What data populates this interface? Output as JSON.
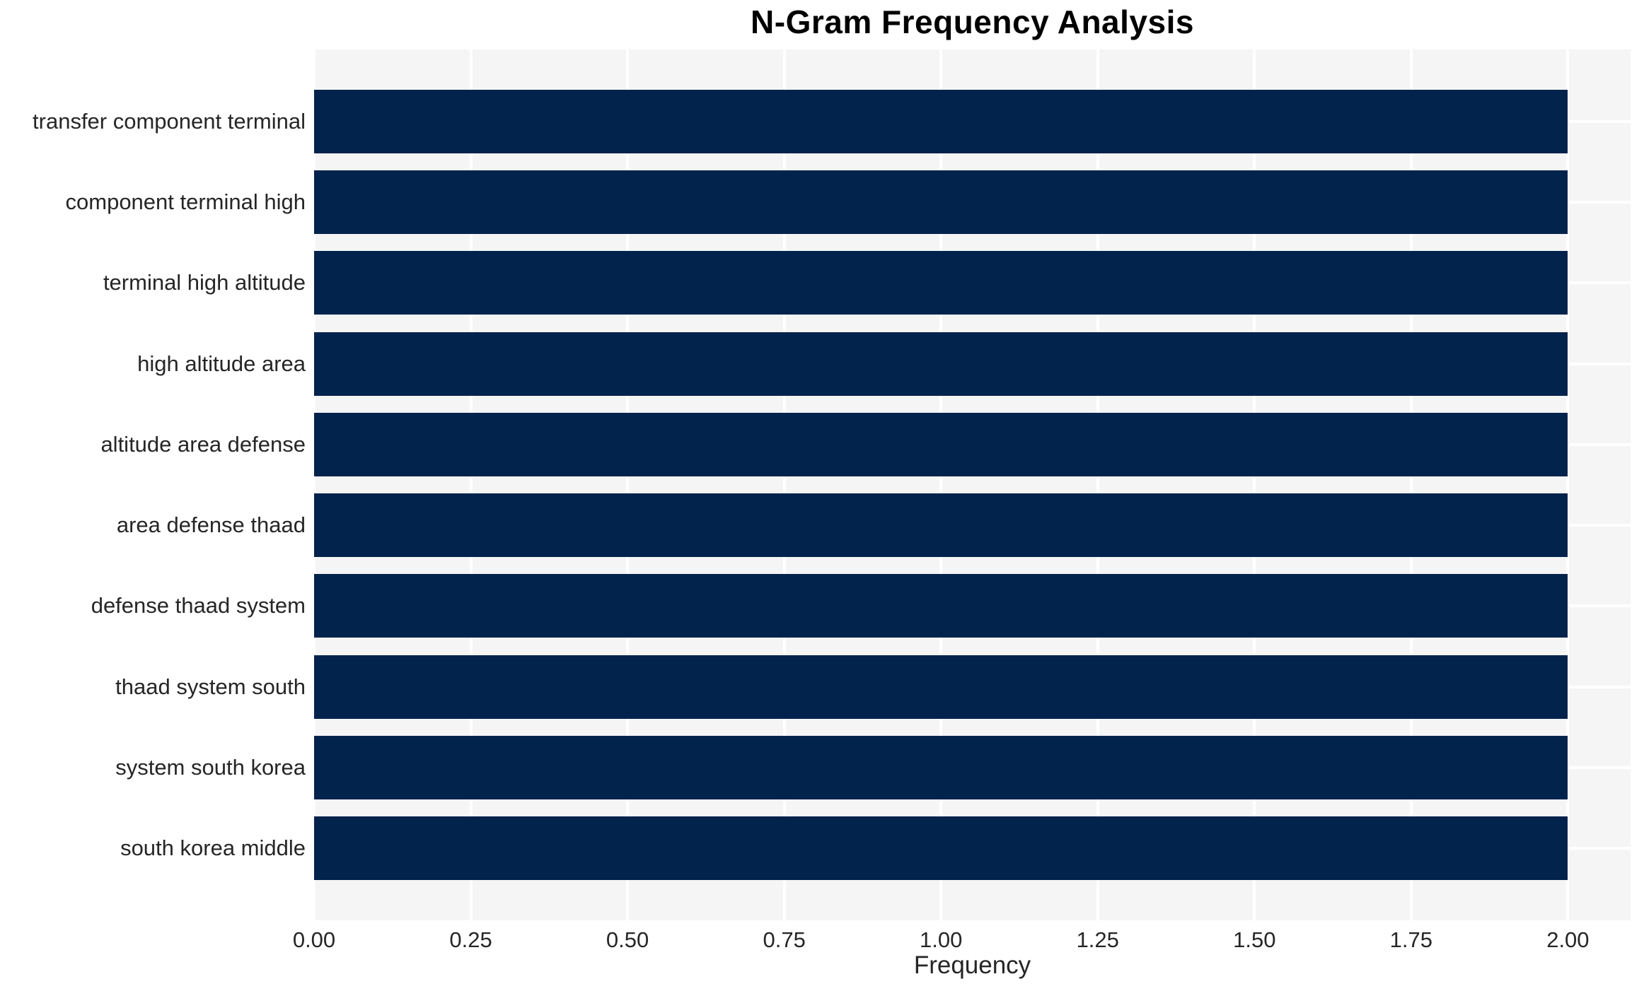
{
  "title": "N-Gram Frequency Analysis",
  "chart_data": {
    "type": "bar",
    "orientation": "horizontal",
    "title": "N-Gram Frequency Analysis",
    "categories": [
      "transfer component terminal",
      "component terminal high",
      "terminal high altitude",
      "high altitude area",
      "altitude area defense",
      "area defense thaad",
      "defense thaad system",
      "thaad system south",
      "system south korea",
      "south korea middle"
    ],
    "values": [
      2,
      2,
      2,
      2,
      2,
      2,
      2,
      2,
      2,
      2
    ],
    "xlabel": "Frequency",
    "ylabel": "",
    "xlim": [
      0,
      2.1
    ],
    "xticks": [
      0,
      0.25,
      0.5,
      0.75,
      1,
      1.25,
      1.5,
      1.75,
      2
    ],
    "xtick_labels": [
      "0.00",
      "0.25",
      "0.50",
      "0.75",
      "1.00",
      "1.25",
      "1.50",
      "1.75",
      "2.00"
    ],
    "grid": true,
    "legend": false,
    "colors": {
      "bar": "#02234C",
      "plot_bg": "#F5F5F6",
      "grid": "#FFFFFF",
      "tick_text": "#262626",
      "title_text": "#000000"
    }
  }
}
